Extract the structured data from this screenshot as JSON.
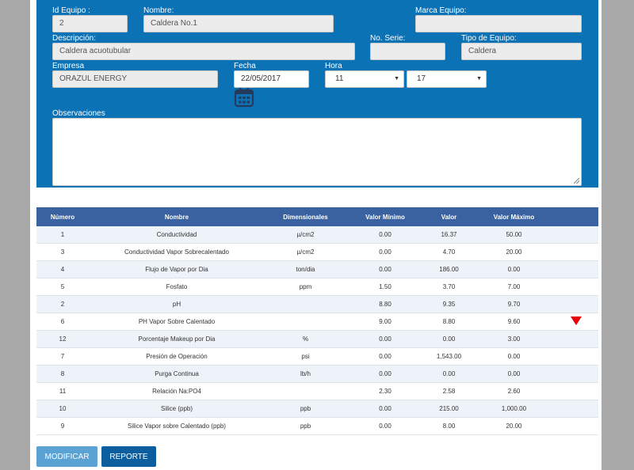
{
  "form": {
    "id_equipo": {
      "label": "Id Equipo :",
      "value": "2"
    },
    "nombre": {
      "label": "Nombre:",
      "value": "Caldera No.1"
    },
    "marca": {
      "label": "Marca Equipo:",
      "value": ""
    },
    "descripcion": {
      "label": "Descripción:",
      "value": "Caldera acuotubular"
    },
    "no_serie": {
      "label": "No. Serie:",
      "value": ""
    },
    "tipo": {
      "label": "Tipo de Equipo:",
      "value": "Caldera"
    },
    "empresa": {
      "label": "Empresa",
      "value": "ORAZUL ENERGY"
    },
    "fecha": {
      "label": "Fecha",
      "value": "22/05/2017"
    },
    "hora": {
      "label": "Hora",
      "hour": "11",
      "minute": "17"
    },
    "observaciones": {
      "label": "Observaciones",
      "value": ""
    }
  },
  "table": {
    "headers": [
      "Número",
      "Nombre",
      "Dimensionales",
      "Valor Mínimo",
      "Valor",
      "Valor Máximo"
    ],
    "rows": [
      {
        "numero": "1",
        "nombre": "Conductividad",
        "dim": "µ/cm2",
        "min": "0.00",
        "valor": "16.37",
        "max": "50.00",
        "alert": false
      },
      {
        "numero": "3",
        "nombre": "Conductividad Vapor Sobrecalentado",
        "dim": "µ/cm2",
        "min": "0.00",
        "valor": "4.70",
        "max": "20.00",
        "alert": false
      },
      {
        "numero": "4",
        "nombre": "Flujo de Vapor por Dia",
        "dim": "ton/dia",
        "min": "0.00",
        "valor": "186.00",
        "max": "0.00",
        "alert": false
      },
      {
        "numero": "5",
        "nombre": "Fosfato",
        "dim": "ppm",
        "min": "1.50",
        "valor": "3.70",
        "max": "7.00",
        "alert": false
      },
      {
        "numero": "2",
        "nombre": "pH",
        "dim": "",
        "min": "8.80",
        "valor": "9.35",
        "max": "9.70",
        "alert": false
      },
      {
        "numero": "6",
        "nombre": "PH Vapor Sobre Calentado",
        "dim": "",
        "min": "9.00",
        "valor": "8.80",
        "max": "9.60",
        "alert": true
      },
      {
        "numero": "12",
        "nombre": "Porcentaje Makeup por Dia",
        "dim": "%",
        "min": "0.00",
        "valor": "0.00",
        "max": "3.00",
        "alert": false
      },
      {
        "numero": "7",
        "nombre": "Presión de Operación",
        "dim": "psi",
        "min": "0.00",
        "valor": "1,543.00",
        "max": "0.00",
        "alert": false
      },
      {
        "numero": "8",
        "nombre": "Purga Continua",
        "dim": "lb/h",
        "min": "0.00",
        "valor": "0.00",
        "max": "0.00",
        "alert": false
      },
      {
        "numero": "11",
        "nombre": "Relación Na:PO4",
        "dim": "",
        "min": "2.30",
        "valor": "2.58",
        "max": "2.60",
        "alert": false
      },
      {
        "numero": "10",
        "nombre": "Silice (ppb)",
        "dim": "ppb",
        "min": "0.00",
        "valor": "215.00",
        "max": "1,000.00",
        "alert": false
      },
      {
        "numero": "9",
        "nombre": "Silice Vapor sobre Calentado (ppb)",
        "dim": "ppb",
        "min": "0.00",
        "valor": "8.00",
        "max": "20.00",
        "alert": false
      }
    ]
  },
  "buttons": {
    "modificar": "MODIFICAR",
    "reporte": "REPORTE"
  },
  "icons": {
    "calendar": "calendar-icon",
    "alert": "red-down-triangle"
  },
  "colors": {
    "panel": "#0c72b6",
    "table_header": "#3a62a0",
    "alert": "#e8000b"
  }
}
